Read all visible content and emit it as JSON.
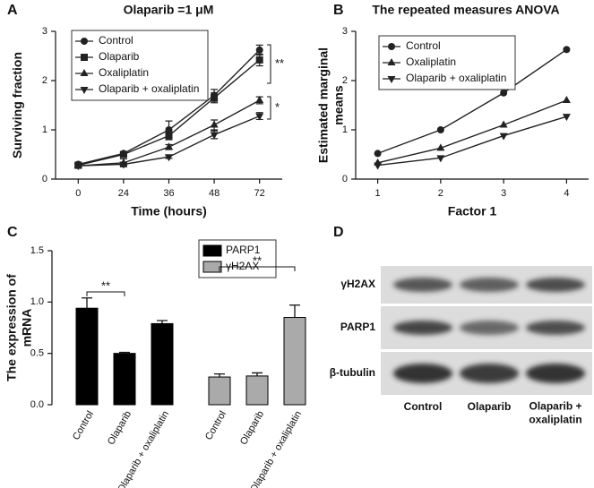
{
  "chart_data": [
    {
      "type": "line",
      "label": "A",
      "title": "Olaparib =1 μM",
      "xlabel": "Time (hours)",
      "ylabel": "Surviving fraction",
      "categories": [
        "0",
        "24",
        "36",
        "48",
        "72"
      ],
      "ylim": [
        0,
        3
      ],
      "yticks": [
        0,
        1,
        2,
        3
      ],
      "legend": "upper left",
      "series": [
        {
          "name": "Control",
          "marker": "circle",
          "color": "#222222",
          "values": [
            0.3,
            0.52,
            1.0,
            1.7,
            2.62
          ],
          "errors": [
            0.04,
            0.03,
            0.18,
            0.12,
            0.1
          ]
        },
        {
          "name": "Olaparib",
          "marker": "square",
          "color": "#222222",
          "values": [
            0.28,
            0.5,
            0.88,
            1.65,
            2.42
          ],
          "errors": [
            0.03,
            0.03,
            0.08,
            0.1,
            0.12
          ]
        },
        {
          "name": "Oxaliplatin",
          "marker": "triangle-up",
          "color": "#222222",
          "values": [
            0.27,
            0.33,
            0.65,
            1.1,
            1.6
          ],
          "errors": [
            0.03,
            0.08,
            0.05,
            0.1,
            0.07
          ]
        },
        {
          "name": "Olaparib + oxaliplatin",
          "marker": "triangle-down",
          "color": "#222222",
          "values": [
            0.27,
            0.3,
            0.45,
            0.9,
            1.28
          ],
          "errors": [
            0.03,
            0.03,
            0.03,
            0.08,
            0.07
          ]
        }
      ],
      "annotations": [
        "**",
        "*"
      ]
    },
    {
      "type": "line",
      "label": "B",
      "title": "The repeated measures ANOVA",
      "xlabel": "Factor 1",
      "ylabel": "Estimated marginal means",
      "x": [
        1,
        2,
        3,
        4
      ],
      "xlim": [
        0.65,
        4.35
      ],
      "xticks": [
        1,
        2,
        3,
        4
      ],
      "ylim": [
        0,
        3
      ],
      "yticks": [
        0,
        1,
        2,
        3
      ],
      "legend": "upper left",
      "series": [
        {
          "name": "Control",
          "marker": "circle",
          "color": "#222222",
          "values": [
            0.52,
            1.0,
            1.75,
            2.63
          ]
        },
        {
          "name": "Oxaliplatin",
          "marker": "triangle-up",
          "color": "#222222",
          "values": [
            0.33,
            0.63,
            1.1,
            1.6
          ]
        },
        {
          "name": "Olaparib + oxaliplatin",
          "marker": "triangle-down",
          "color": "#222222",
          "values": [
            0.28,
            0.43,
            0.88,
            1.27
          ]
        }
      ]
    },
    {
      "type": "bar",
      "label": "C",
      "ylabel": "The expression of mRNA",
      "categories": [
        "Control",
        "Olaparib",
        "Olaparib + oxaliplatin"
      ],
      "ylim": [
        0,
        1.5
      ],
      "yticks": [
        {
          "value": 0,
          "label": "0.0"
        },
        0.5,
        {
          "value": 1,
          "label": "1.0"
        },
        1.5
      ],
      "legend": "upper right",
      "series": [
        {
          "name": "PARP1",
          "color": "#000000",
          "values": [
            0.94,
            0.5,
            0.79
          ],
          "errors": [
            0.1,
            0.01,
            0.03
          ]
        },
        {
          "name": "γH2AX",
          "color": "#aaaaaa",
          "values": [
            0.27,
            0.28,
            0.85
          ],
          "errors": [
            0.03,
            0.03,
            0.12
          ]
        }
      ],
      "annotations": [
        "**",
        "**"
      ]
    }
  ],
  "blot": {
    "label": "D",
    "rows": [
      "γH2AX",
      "PARP1",
      "β-tubulin"
    ],
    "columns": [
      "Control",
      "Olaparib",
      "Olaparib + oxaliplatin"
    ]
  }
}
